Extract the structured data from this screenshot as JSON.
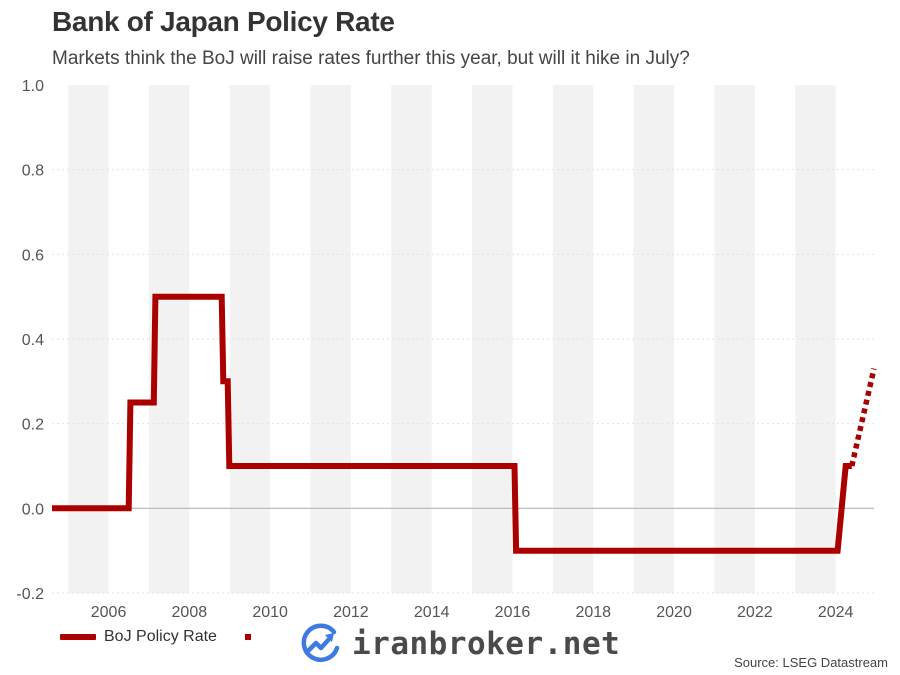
{
  "chart_data": {
    "type": "line",
    "title": "Bank of Japan Policy Rate",
    "subtitle": "Markets think the BoJ will raise rates further this year, but will it hike in July?",
    "source": "Source: LSEG Datastream",
    "ylim": [
      -0.2,
      1.0
    ],
    "y_ticks": [
      "1.0",
      "0.8",
      "0.6",
      "0.4",
      "0.2",
      "0.0",
      "-0.2"
    ],
    "xlim": [
      2004.6,
      2024.95
    ],
    "x_ticks": [
      {
        "value": 2006,
        "label": "2006"
      },
      {
        "value": 2008,
        "label": "2008"
      },
      {
        "value": 2010,
        "label": "2010"
      },
      {
        "value": 2012,
        "label": "2012"
      },
      {
        "value": 2014,
        "label": "2014"
      },
      {
        "value": 2016,
        "label": "2016"
      },
      {
        "value": 2018,
        "label": "2018"
      },
      {
        "value": 2020,
        "label": "2020"
      },
      {
        "value": 2022,
        "label": "2022"
      },
      {
        "value": 2024,
        "label": "2024"
      }
    ],
    "shaded_years": [
      2005,
      2007,
      2009,
      2011,
      2013,
      2015,
      2017,
      2019,
      2021,
      2023
    ],
    "series": [
      {
        "name": "BoJ Policy Rate",
        "style": "solid",
        "color": "#aa0000",
        "x": [
          2004.6,
          2006.5,
          2006.54,
          2007.12,
          2007.16,
          2008.8,
          2008.84,
          2008.95,
          2008.99,
          2016.05,
          2016.09,
          2024.05,
          2024.25,
          2024.4
        ],
        "y": [
          0.0,
          0.0,
          0.25,
          0.25,
          0.5,
          0.5,
          0.3,
          0.3,
          0.1,
          0.1,
          -0.1,
          -0.1,
          0.1,
          0.1
        ]
      },
      {
        "name": "",
        "style": "dotted",
        "color": "#aa0000",
        "x": [
          2024.4,
          2024.95
        ],
        "y": [
          0.1,
          0.33
        ]
      }
    ],
    "grid": true,
    "legend_position": "bottom-left"
  },
  "watermark": {
    "text": "iranbroker.net",
    "icon": "chart-growth-icon",
    "color": "#3d7be3"
  }
}
